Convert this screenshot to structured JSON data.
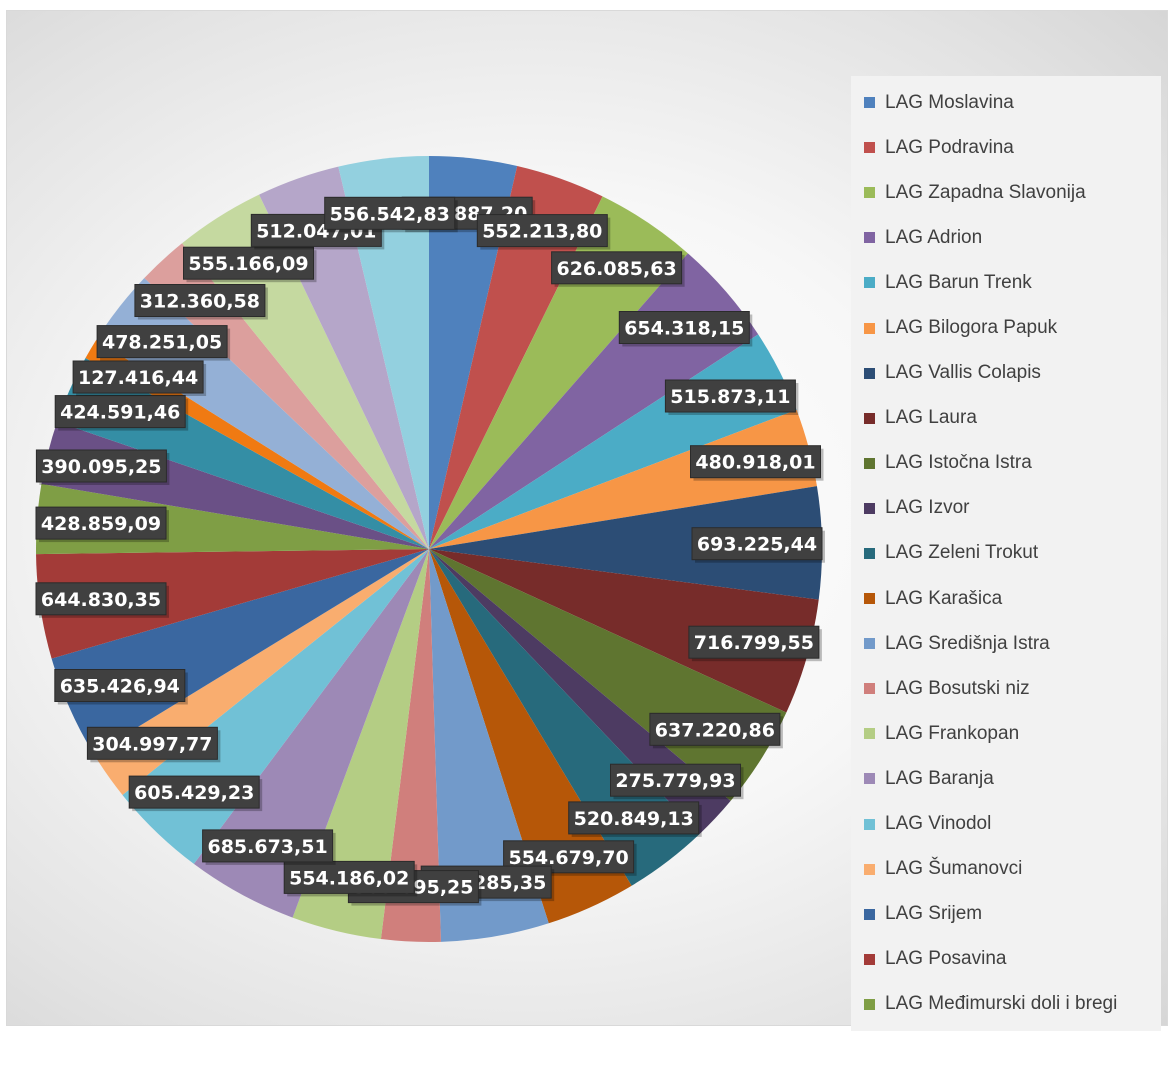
{
  "chart_data": {
    "type": "pie",
    "title": "",
    "start_angle_deg": 0,
    "direction": "clockwise",
    "legend_position": "right",
    "slices": [
      {
        "label": "LAG Moslavina",
        "value": 540887.2,
        "value_text": "540.887,20",
        "color": "#4f81bd"
      },
      {
        "label": "LAG Podravina",
        "value": 552213.8,
        "value_text": "552.213,80",
        "color": "#c0504d"
      },
      {
        "label": "LAG Zapadna Slavonija",
        "value": 626085.63,
        "value_text": "626.085,63",
        "color": "#9bbb59"
      },
      {
        "label": "LAG Adrion",
        "value": 654318.15,
        "value_text": "654.318,15",
        "color": "#8064a2"
      },
      {
        "label": "LAG Barun Trenk",
        "value": 515873.11,
        "value_text": "515.873,11",
        "color": "#4bacc6"
      },
      {
        "label": "LAG Bilogora Papuk",
        "value": 480918.01,
        "value_text": "480.918,01",
        "color": "#f79646"
      },
      {
        "label": "LAG Vallis Colapis",
        "value": 693225.44,
        "value_text": "693.225,44",
        "color": "#2c4d75"
      },
      {
        "label": "LAG Laura",
        "value": 716799.55,
        "value_text": "716.799,55",
        "color": "#772c2a"
      },
      {
        "label": "LAG Istočna Istra",
        "value": 637220.86,
        "value_text": "637.220,86",
        "color": "#5f7530"
      },
      {
        "label": "LAG Izvor",
        "value": 275779.93,
        "value_text": "275.779,93",
        "color": "#4d3b62"
      },
      {
        "label": "LAG Zeleni Trokut",
        "value": 520849.13,
        "value_text": "520.849,13",
        "color": "#276a7c"
      },
      {
        "label": "LAG Karašica",
        "value": 554679.7,
        "value_text": "554.679,70",
        "color": "#b65708"
      },
      {
        "label": "LAG Središnja Istra",
        "value": 667285.35,
        "value_text": "667.285,35",
        "color": "#729aca"
      },
      {
        "label": "LAG Bosutski niz",
        "value": 365695.25,
        "value_text": "365.695,25",
        "color": "#d07f7c"
      },
      {
        "label": "LAG Frankopan",
        "value": 554186.02,
        "value_text": "554.186,02",
        "color": "#b4cd84"
      },
      {
        "label": "LAG Baranja",
        "value": 685673.51,
        "value_text": "685.673,51",
        "color": "#9d89b6"
      },
      {
        "label": "LAG Vinodol",
        "value": 605429.23,
        "value_text": "605.429,23",
        "color": "#71c1d6"
      },
      {
        "label": "LAG Šumanovci",
        "value": 304997.77,
        "value_text": "304.997,77",
        "color": "#f9ad6f"
      },
      {
        "label": "LAG Srijem",
        "value": 635426.94,
        "value_text": "635.426,94",
        "color": "#3a67a0"
      },
      {
        "label": "LAG Posavina",
        "value": 644830.35,
        "value_text": "644.830,35",
        "color": "#a33b38"
      },
      {
        "label": "LAG Međimurski doli i bregi",
        "value": 428859.09,
        "value_text": "428.859,09",
        "color": "#7f9e45"
      },
      {
        "label": "",
        "value": 390095.25,
        "value_text": "390.095,25",
        "color": "#6a5086"
      },
      {
        "label": "",
        "value": 424591.46,
        "value_text": "424.591,46",
        "color": "#348ea5"
      },
      {
        "label": "",
        "value": 127416.44,
        "value_text": "127.416,44",
        "color": "#f07a12"
      },
      {
        "label": "",
        "value": 478251.05,
        "value_text": "478.251,05",
        "color": "#94b0d6"
      },
      {
        "label": "",
        "value": 312360.58,
        "value_text": "312.360,58",
        "color": "#dc9f9d"
      },
      {
        "label": "",
        "value": 555166.09,
        "value_text": "555.166,09",
        "color": "#c5d9a0"
      },
      {
        "label": "",
        "value": 512047.01,
        "value_text": "512.047,01",
        "color": "#b5a6c9"
      },
      {
        "label": "",
        "value": 556542.83,
        "value_text": "556.542,83",
        "color": "#93d0df"
      }
    ]
  }
}
